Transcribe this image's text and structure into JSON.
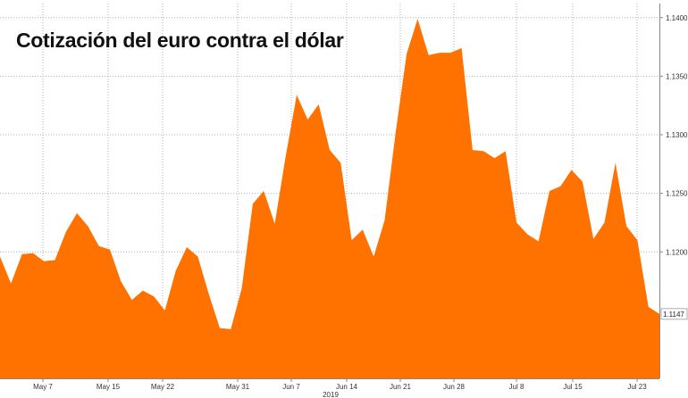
{
  "chart_data": {
    "type": "area",
    "title": "Cotización del euro contra el dólar",
    "xlabel": "2019",
    "ylabel": "",
    "x_tick_labels": [
      "May 7",
      "May 15",
      "May 22",
      "May 31",
      "Jun 7",
      "Jun 14",
      "Jun 21",
      "Jun 28",
      "Jul 8",
      "Jul 15",
      "Jul 23"
    ],
    "y_tick_labels": [
      "1.1200",
      "1.1250",
      "1.1300",
      "1.1350",
      "1.1400"
    ],
    "y_ticks": [
      1.12,
      1.125,
      1.13,
      1.135,
      1.14
    ],
    "ylim": [
      1.1092,
      1.1412
    ],
    "grid": true,
    "last_value_label": "1.1147",
    "color": "#ff7200",
    "series": [
      {
        "values": [
          1.1196,
          1.1173,
          1.1198,
          1.1199,
          1.1192,
          1.1193,
          1.1217,
          1.1233,
          1.1222,
          1.1205,
          1.1202,
          1.1175,
          1.1159,
          1.1167,
          1.1162,
          1.115,
          1.1184,
          1.1204,
          1.1196,
          1.1164,
          1.1135,
          1.1134,
          1.1169,
          1.1241,
          1.1252,
          1.1224,
          1.1282,
          1.1334,
          1.1313,
          1.1326,
          1.1287,
          1.1276,
          1.121,
          1.1219,
          1.1196,
          1.1227,
          1.1302,
          1.1369,
          1.1399,
          1.1368,
          1.137,
          1.137,
          1.1374,
          1.1287,
          1.1286,
          1.128,
          1.1286,
          1.1225,
          1.1215,
          1.1209,
          1.1252,
          1.1256,
          1.127,
          1.126,
          1.1211,
          1.1225,
          1.1276,
          1.1222,
          1.121,
          1.1153,
          1.1147
        ]
      }
    ]
  }
}
